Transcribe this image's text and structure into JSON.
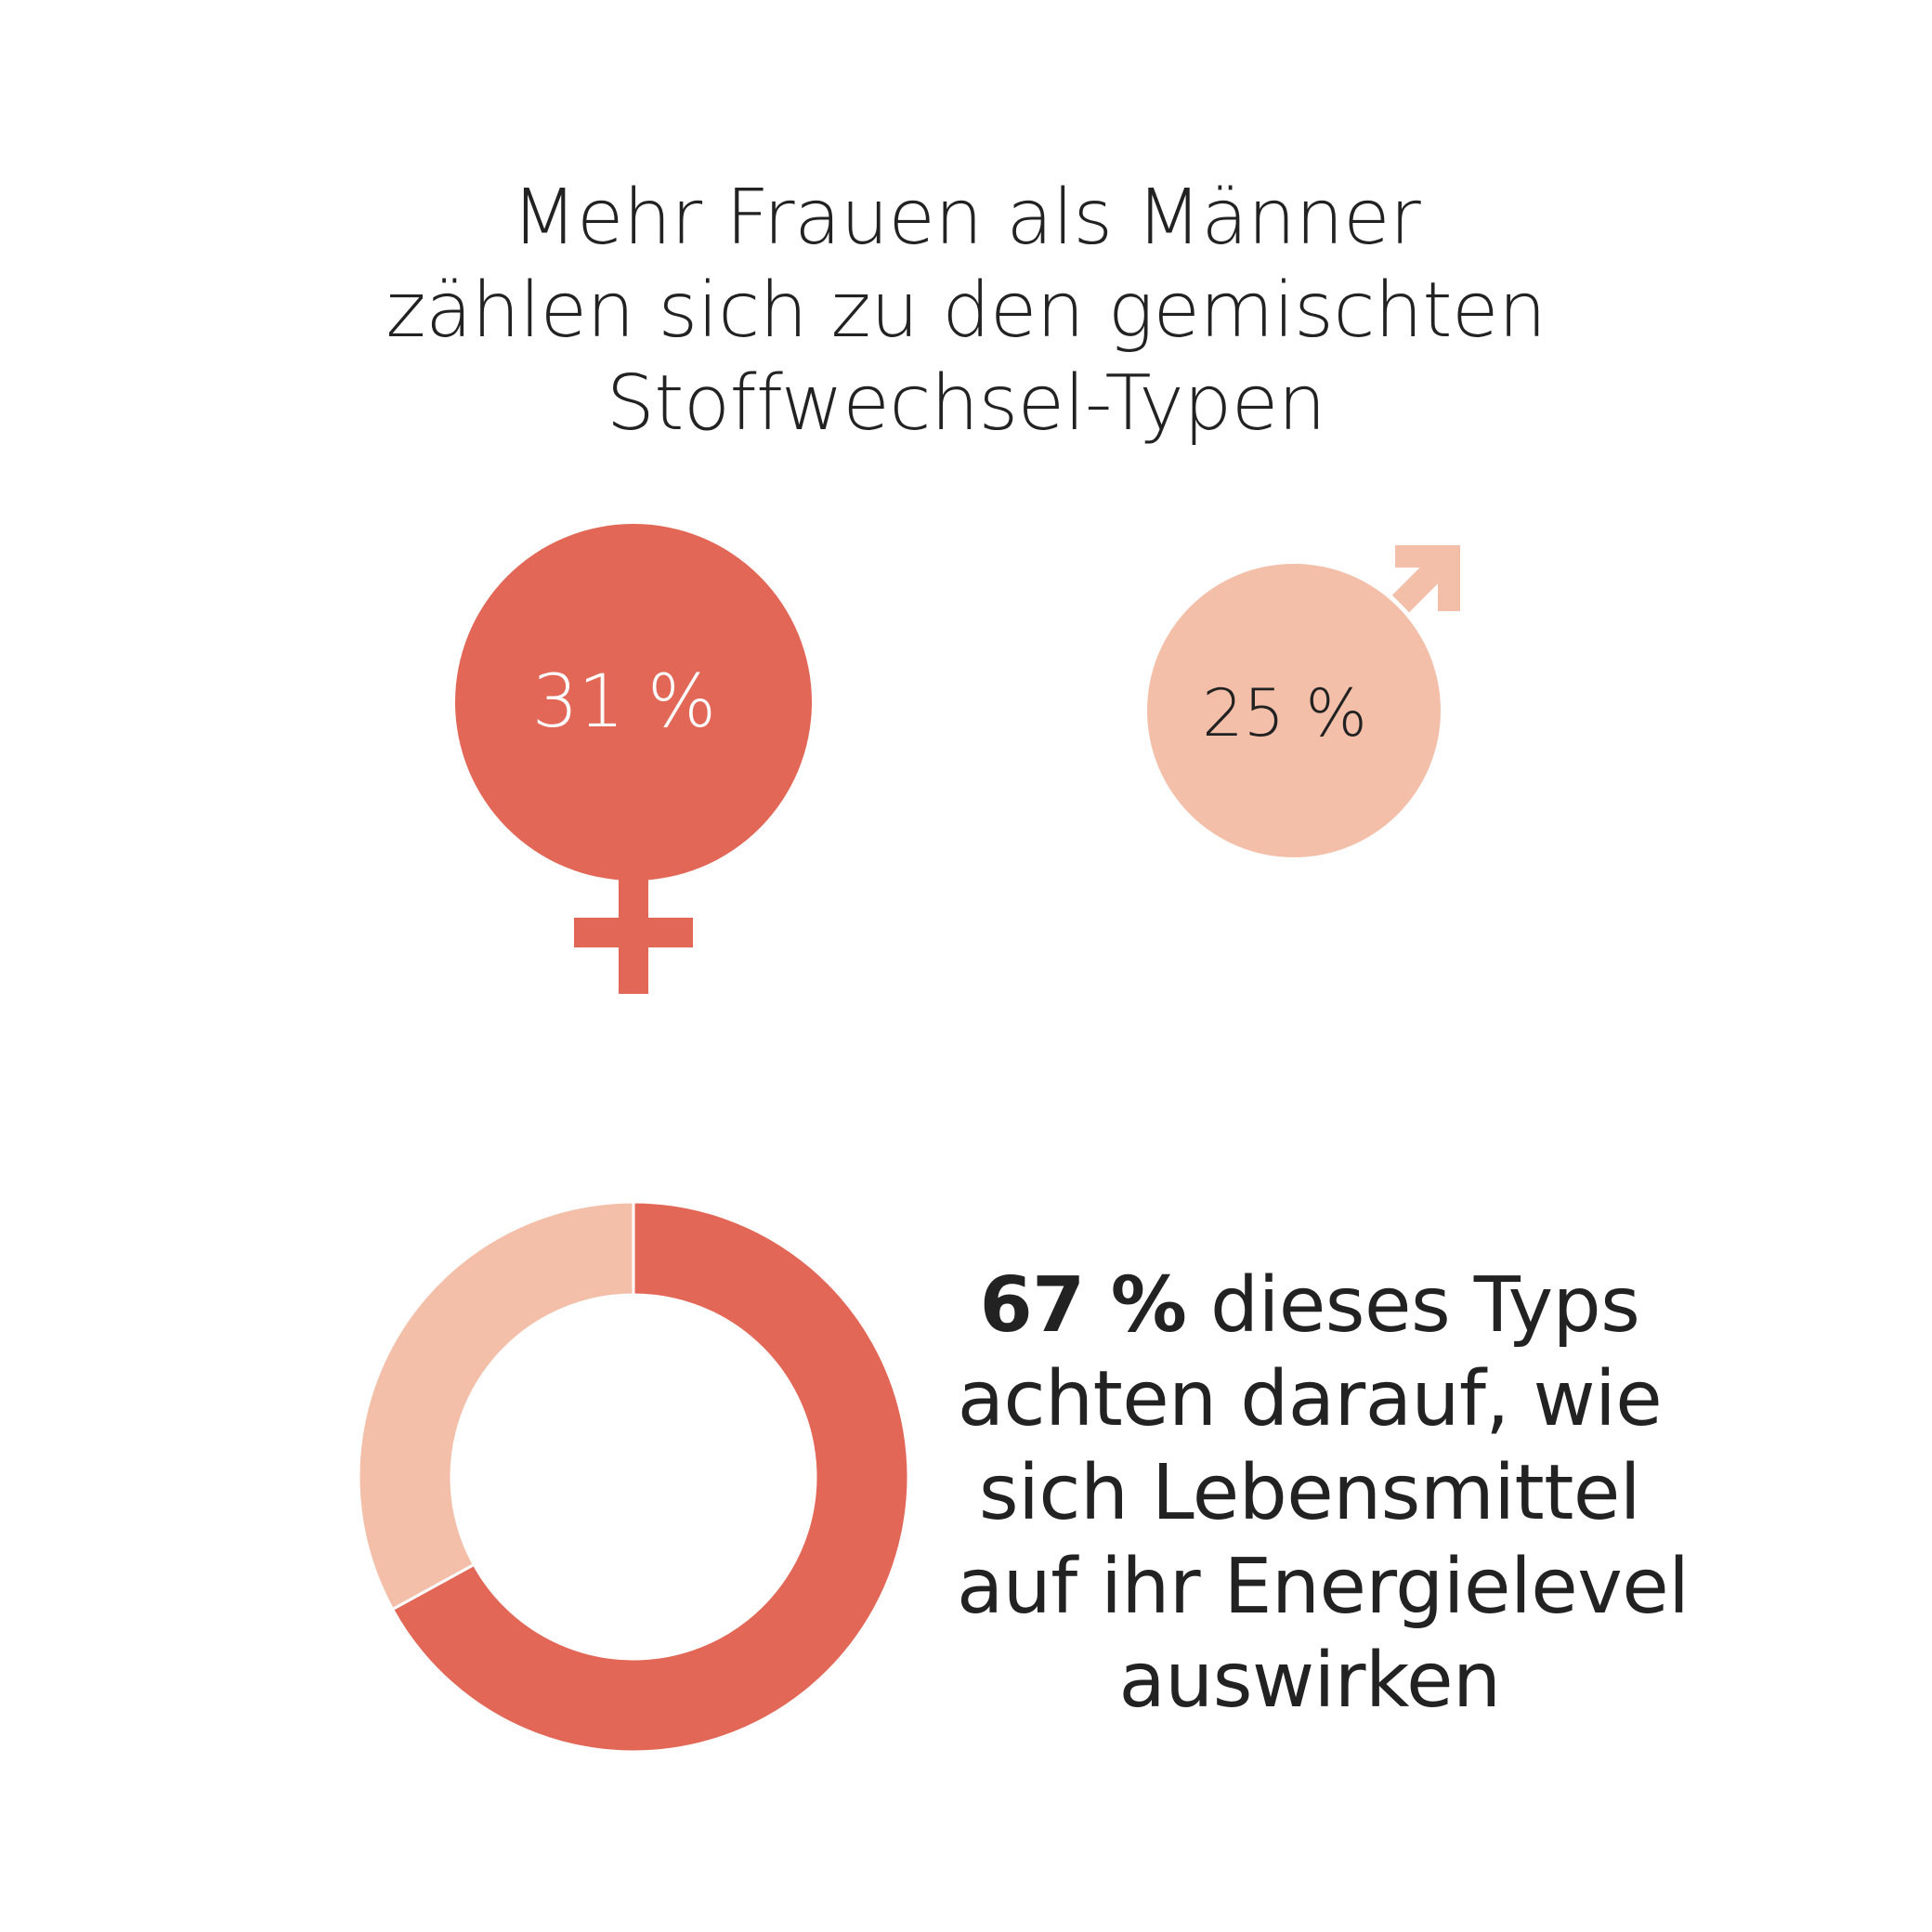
{
  "headline": {
    "lines": [
      "Mehr Frauen als Männer",
      "zählen sich zu den gemischten",
      "Stoffwechsel-Typen"
    ]
  },
  "colors": {
    "primary": "#E26756",
    "secondary": "#F4BFA9",
    "text_dark": "#222222",
    "text_light": "#FFFFFF"
  },
  "chart_data": [
    {
      "type": "symbol-circle",
      "series": [
        {
          "symbol": "female-icon",
          "value": 31,
          "label": "31 %",
          "color": "#E26756"
        },
        {
          "symbol": "male-icon",
          "value": 25,
          "label": "25 %",
          "color": "#F4BFA9"
        }
      ]
    },
    {
      "type": "pie",
      "variant": "donut",
      "slices": [
        {
          "value": 67,
          "color": "#E26756"
        },
        {
          "value": 33,
          "color": "#F4BFA9"
        }
      ],
      "annotation": {
        "highlight": "67 %",
        "text_first_line": "dieses Typs",
        "text_lines": [
          "achten darauf, wie",
          "sich Lebensmittel",
          "auf ihr Energielevel",
          "auswirken"
        ]
      }
    }
  ]
}
